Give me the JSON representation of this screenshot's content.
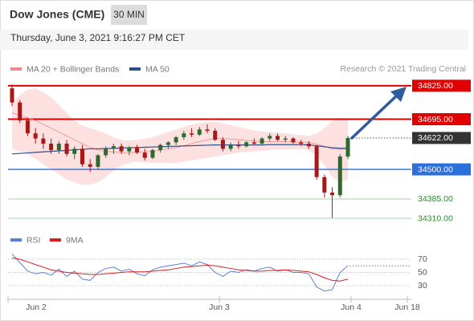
{
  "header": {
    "title": "Dow Jones (CME)",
    "interval": "30 MIN",
    "datetime": "Thursday, June 3, 2021 9:16:27 PM CET"
  },
  "chart_data": [
    {
      "type": "candlestick",
      "credit": "Research © 2021 Trading Central",
      "ylim": [
        34285,
        34862
      ],
      "up_color": "#2e6b2a",
      "down_color": "#a81818",
      "candles": {
        "open": [
          34815,
          34760,
          34690,
          34640,
          34620,
          34600,
          34575,
          34600,
          34560,
          34580,
          34520,
          34510,
          34555,
          34580,
          34590,
          34570,
          34585,
          34565,
          34545,
          34575,
          34595,
          34605,
          34625,
          34640,
          34635,
          34655,
          34650,
          34615,
          34580,
          34595,
          34590,
          34605,
          34600,
          34620,
          34630,
          34615,
          34620,
          34605,
          34600,
          34590,
          34470,
          34410,
          34400,
          34550
        ],
        "high": [
          34830,
          34770,
          34700,
          34660,
          34640,
          34620,
          34610,
          34615,
          34590,
          34595,
          34540,
          34560,
          34590,
          34600,
          34600,
          34590,
          34595,
          34580,
          34580,
          34600,
          34610,
          34630,
          34650,
          34660,
          34665,
          34675,
          34660,
          34625,
          34605,
          34610,
          34610,
          34620,
          34625,
          34640,
          34640,
          34630,
          34625,
          34615,
          34610,
          34595,
          34480,
          34430,
          34560,
          34630
        ],
        "low": [
          34745,
          34680,
          34630,
          34600,
          34580,
          34560,
          34560,
          34550,
          34540,
          34510,
          34490,
          34500,
          34545,
          34560,
          34560,
          34555,
          34560,
          34535,
          34540,
          34565,
          34580,
          34595,
          34615,
          34625,
          34630,
          34640,
          34610,
          34570,
          34570,
          34580,
          34585,
          34595,
          34595,
          34610,
          34610,
          34605,
          34600,
          34590,
          34580,
          34460,
          34390,
          34312,
          34390,
          34540
        ],
        "close": [
          34760,
          34690,
          34640,
          34620,
          34600,
          34575,
          34600,
          34560,
          34580,
          34520,
          34510,
          34555,
          34580,
          34590,
          34570,
          34585,
          34565,
          34545,
          34575,
          34595,
          34605,
          34625,
          34640,
          34635,
          34655,
          34650,
          34615,
          34580,
          34595,
          34590,
          34605,
          34600,
          34620,
          34630,
          34615,
          34620,
          34605,
          34600,
          34590,
          34470,
          34410,
          34400,
          34550,
          34622
        ]
      },
      "series": [
        {
          "name": "MA 20 + Bollinger Bands",
          "color": "#f08a8a",
          "band_color": "#fde0e0",
          "values": [
            34720,
            34710,
            34700,
            34690,
            34675,
            34660,
            34645,
            34630,
            34615,
            34600,
            34585,
            34575,
            34570,
            34568,
            34565,
            34565,
            34567,
            34568,
            34570,
            34575,
            34580,
            34585,
            34592,
            34600,
            34608,
            34615,
            34620,
            34620,
            34618,
            34615,
            34612,
            34610,
            34608,
            34608,
            34608,
            34608,
            34607,
            34606,
            34605,
            34598,
            34590,
            34580,
            34578,
            34580
          ],
          "upper": [
            34760,
            34790,
            34810,
            34815,
            34800,
            34780,
            34750,
            34720,
            34690,
            34670,
            34660,
            34650,
            34640,
            34625,
            34615,
            34612,
            34615,
            34620,
            34625,
            34635,
            34645,
            34655,
            34665,
            34675,
            34680,
            34685,
            34685,
            34680,
            34672,
            34665,
            34658,
            34652,
            34648,
            34645,
            34642,
            34640,
            34636,
            34633,
            34630,
            34640,
            34660,
            34690,
            34700,
            34695
          ],
          "lower": [
            34580,
            34570,
            34560,
            34540,
            34520,
            34500,
            34480,
            34460,
            34450,
            34440,
            34440,
            34450,
            34470,
            34495,
            34515,
            34525,
            34530,
            34528,
            34525,
            34525,
            34525,
            34525,
            34530,
            34535,
            34540,
            34545,
            34550,
            34555,
            34560,
            34565,
            34568,
            34570,
            34572,
            34575,
            34577,
            34578,
            34578,
            34578,
            34575,
            34555,
            34515,
            34470,
            34450,
            34460
          ]
        },
        {
          "name": "MA 50",
          "color": "#2f4f8a",
          "values": [
            34560,
            34562,
            34564,
            34566,
            34568,
            34570,
            34572,
            34574,
            34576,
            34578,
            34580,
            34580,
            34581,
            34582,
            34583,
            34584,
            34585,
            34586,
            34587,
            34588,
            34589,
            34590,
            34591,
            34592,
            34593,
            34594,
            34595,
            34595,
            34595,
            34595,
            34595,
            34595,
            34595,
            34596,
            34596,
            34596,
            34596,
            34596,
            34595,
            34592,
            34588,
            34584,
            34582,
            34582
          ]
        }
      ],
      "levels": [
        {
          "value": 34825,
          "label": "34825.00",
          "color": "#e00000",
          "style": "box"
        },
        {
          "value": 34695,
          "label": "34695.00",
          "color": "#e00000",
          "style": "box"
        },
        {
          "value": 34622,
          "label": "34622.00",
          "color": "#333333",
          "style": "current"
        },
        {
          "value": 34500,
          "label": "34500.00",
          "color": "#2a6fdb",
          "style": "box"
        },
        {
          "value": 34385,
          "label": "34385.00",
          "color": "#2e8b2e",
          "style": "text"
        },
        {
          "value": 34310,
          "label": "34310.00",
          "color": "#2e8b2e",
          "style": "text"
        }
      ]
    },
    {
      "type": "line",
      "ylim": [
        15,
        92
      ],
      "yticks": [
        70,
        50,
        30
      ],
      "x_labels": [
        "Jun 2",
        "Jun 3",
        "Jun 4",
        "Jun 18"
      ],
      "series": [
        {
          "name": "RSI",
          "color": "#5b7fd6",
          "values": [
            78,
            65,
            52,
            48,
            50,
            46,
            55,
            44,
            52,
            40,
            38,
            50,
            56,
            58,
            52,
            55,
            48,
            45,
            54,
            58,
            60,
            62,
            64,
            60,
            66,
            62,
            50,
            44,
            52,
            50,
            54,
            52,
            56,
            58,
            52,
            54,
            50,
            50,
            48,
            28,
            22,
            24,
            50,
            60
          ]
        },
        {
          "name": "9MA",
          "color": "#d81f1f",
          "values": [
            72,
            70,
            66,
            62,
            58,
            54,
            52,
            50,
            49,
            48,
            47,
            47,
            48,
            49,
            50,
            51,
            51,
            51,
            52,
            53,
            54,
            56,
            58,
            59,
            60,
            61,
            60,
            58,
            56,
            54,
            53,
            52,
            52,
            53,
            53,
            54,
            53,
            52,
            51,
            47,
            42,
            38,
            37,
            40
          ]
        }
      ]
    }
  ]
}
